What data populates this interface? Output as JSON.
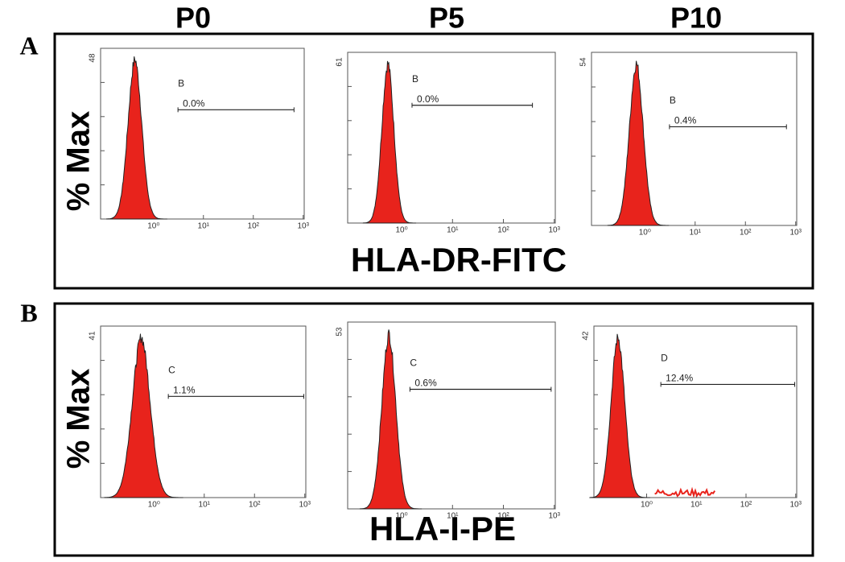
{
  "columns": [
    "P0",
    "P5",
    "P10"
  ],
  "x_tick_labels": [
    "10⁰",
    "10¹",
    "10²",
    "10³"
  ],
  "rows": [
    {
      "label": "A",
      "y_axis_title": "% Max",
      "x_axis_title": "HLA-DR-FITC",
      "panels": [
        {
          "y_max": "48",
          "gate": "B",
          "percent": "0.0%"
        },
        {
          "y_max": "61",
          "gate": "B",
          "percent": "0.0%"
        },
        {
          "y_max": "54",
          "gate": "B",
          "percent": "0.4%"
        }
      ]
    },
    {
      "label": "B",
      "y_axis_title": "% Max",
      "x_axis_title": "HLA-I-PE",
      "panels": [
        {
          "y_max": "41",
          "gate": "C",
          "percent": "1.1%"
        },
        {
          "y_max": "53",
          "gate": "C",
          "percent": "0.6%"
        },
        {
          "y_max": "42",
          "gate": "D",
          "percent": "12.4%"
        }
      ]
    }
  ]
}
